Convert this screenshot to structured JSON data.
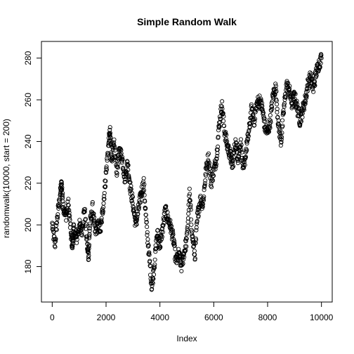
{
  "chart_data": {
    "type": "scatter",
    "title": "Simple Random Walk",
    "xlabel": "Index",
    "ylabel": "randomwalk(10000, start = 200)",
    "xlim": [
      -400,
      10400
    ],
    "ylim": [
      163,
      288
    ],
    "x_ticks": [
      0,
      2000,
      4000,
      6000,
      8000,
      10000
    ],
    "y_ticks": [
      180,
      200,
      220,
      240,
      260,
      280
    ],
    "grid": false,
    "marker": "open-circle",
    "series": [
      {
        "x": [
          0,
          100,
          200,
          300,
          350,
          400,
          500,
          600,
          700,
          750,
          800,
          900,
          1000,
          1100,
          1200,
          1300,
          1350,
          1400,
          1500,
          1600,
          1700,
          1800,
          1900,
          2000,
          2100,
          2150,
          2200,
          2300,
          2400,
          2500,
          2600,
          2700,
          2800,
          2900,
          3000,
          3100,
          3200,
          3300,
          3400,
          3500,
          3600,
          3700,
          3800,
          3900,
          4000,
          4100,
          4200,
          4300,
          4400,
          4500,
          4600,
          4700,
          4800,
          4900,
          5000,
          5100,
          5200,
          5300,
          5400,
          5500,
          5600,
          5700,
          5800,
          5900,
          6000,
          6100,
          6200,
          6300,
          6400,
          6500,
          6600,
          6700,
          6800,
          6900,
          7000,
          7100,
          7200,
          7300,
          7400,
          7500,
          7600,
          7700,
          7800,
          7900,
          8000,
          8100,
          8200,
          8300,
          8400,
          8500,
          8600,
          8700,
          8800,
          8900,
          9000,
          9100,
          9200,
          9300,
          9400,
          9500,
          9600,
          9700,
          9800,
          9900,
          10000
        ],
        "y": [
          200,
          190,
          205,
          215,
          220,
          210,
          204,
          210,
          195,
          190,
          198,
          193,
          200,
          197,
          208,
          190,
          185,
          200,
          208,
          196,
          200,
          198,
          210,
          225,
          240,
          244,
          232,
          238,
          226,
          236,
          232,
          222,
          230,
          218,
          210,
          200,
          207,
          215,
          220,
          200,
          185,
          170,
          182,
          196,
          190,
          198,
          207,
          203,
          199,
          193,
          182,
          186,
          180,
          187,
          193,
          215,
          195,
          185,
          205,
          212,
          210,
          225,
          233,
          220,
          226,
          232,
          248,
          258,
          245,
          238,
          234,
          228,
          240,
          232,
          240,
          225,
          236,
          244,
          255,
          250,
          258,
          260,
          256,
          247,
          244,
          250,
          262,
          266,
          248,
          240,
          255,
          267,
          265,
          258,
          262,
          256,
          250,
          255,
          260,
          268,
          271,
          265,
          273,
          277,
          280
        ]
      }
    ]
  }
}
